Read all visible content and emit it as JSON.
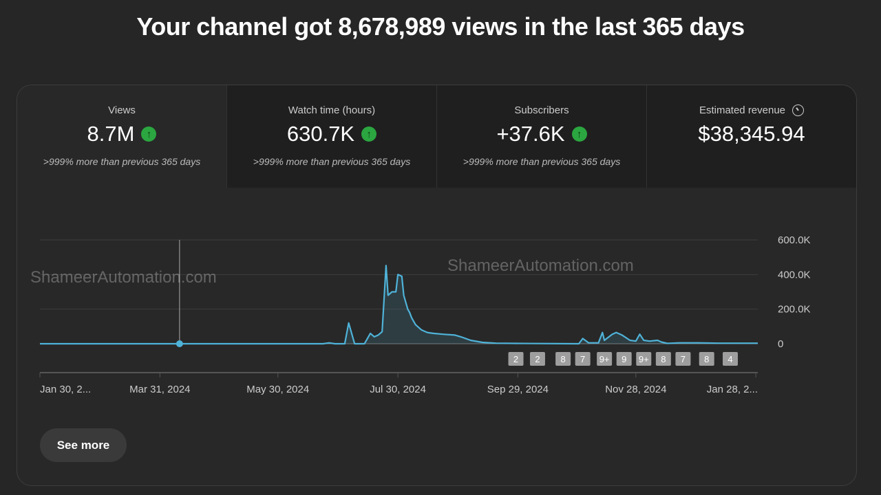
{
  "headline": "Your channel got 8,678,989 views in the last 365 days",
  "tabs": [
    {
      "label": "Views",
      "value": "8.7M",
      "trend": "up",
      "sub": ">999% more than previous 365 days"
    },
    {
      "label": "Watch time (hours)",
      "value": "630.7K",
      "trend": "up",
      "sub": ">999% more than previous 365 days"
    },
    {
      "label": "Subscribers",
      "value": "+37.6K",
      "trend": "up",
      "sub": ">999% more than previous 365 days"
    },
    {
      "label": "Estimated revenue",
      "value": "$38,345.94",
      "icon": "clock-icon"
    }
  ],
  "watermarks": [
    "ShameerAutomation.com",
    "ShameerAutomation.com"
  ],
  "see_more": "See more",
  "colors": {
    "line": "#4fb3d9",
    "up": "#2ba640"
  },
  "chart_data": {
    "type": "line",
    "series_name": "Views",
    "x_unit": "days since Jan 30, 2024",
    "xlim": [
      0,
      365
    ],
    "ylim": [
      0,
      600
    ],
    "y_unit": "K",
    "yticks": [
      {
        "v": 0,
        "label": "0"
      },
      {
        "v": 200,
        "label": "200.0K"
      },
      {
        "v": 400,
        "label": "400.0K"
      },
      {
        "v": 600,
        "label": "600.0K"
      }
    ],
    "xticks": [
      {
        "d": 0,
        "label": "Jan 30, 2..."
      },
      {
        "d": 61,
        "label": "Mar 31, 2024"
      },
      {
        "d": 121,
        "label": "May 30, 2024"
      },
      {
        "d": 182,
        "label": "Jul 30, 2024"
      },
      {
        "d": 243,
        "label": "Sep 29, 2024"
      },
      {
        "d": 303,
        "label": "Nov 28, 2024"
      },
      {
        "d": 364,
        "label": "Jan 28, 2..."
      }
    ],
    "points": [
      [
        0,
        0
      ],
      [
        144,
        0
      ],
      [
        147,
        5
      ],
      [
        150,
        0
      ],
      [
        155,
        0
      ],
      [
        157,
        120
      ],
      [
        160,
        0
      ],
      [
        165,
        0
      ],
      [
        168,
        60
      ],
      [
        170,
        40
      ],
      [
        172,
        50
      ],
      [
        174,
        70
      ],
      [
        176,
        452
      ],
      [
        177,
        280
      ],
      [
        179,
        300
      ],
      [
        181,
        300
      ],
      [
        182,
        400
      ],
      [
        184,
        390
      ],
      [
        185,
        280
      ],
      [
        187,
        200
      ],
      [
        188,
        180
      ],
      [
        189,
        150
      ],
      [
        191,
        110
      ],
      [
        194,
        80
      ],
      [
        197,
        65
      ],
      [
        200,
        60
      ],
      [
        205,
        55
      ],
      [
        211,
        50
      ],
      [
        214,
        40
      ],
      [
        219,
        20
      ],
      [
        225,
        8
      ],
      [
        232,
        3
      ],
      [
        242,
        2
      ],
      [
        274,
        0
      ],
      [
        276,
        30
      ],
      [
        279,
        5
      ],
      [
        284,
        5
      ],
      [
        286,
        65
      ],
      [
        287,
        20
      ],
      [
        291,
        55
      ],
      [
        293,
        65
      ],
      [
        296,
        50
      ],
      [
        300,
        20
      ],
      [
        303,
        15
      ],
      [
        305,
        55
      ],
      [
        307,
        20
      ],
      [
        310,
        15
      ],
      [
        314,
        20
      ],
      [
        316,
        10
      ],
      [
        319,
        2
      ],
      [
        325,
        5
      ],
      [
        335,
        5
      ],
      [
        345,
        3
      ],
      [
        365,
        3
      ]
    ],
    "cursor_day": 71,
    "annotations": [
      {
        "d": 242,
        "label": "2"
      },
      {
        "d": 253,
        "label": "2"
      },
      {
        "d": 266,
        "label": "8"
      },
      {
        "d": 276,
        "label": "7"
      },
      {
        "d": 287,
        "label": "9+"
      },
      {
        "d": 297,
        "label": "9"
      },
      {
        "d": 307,
        "label": "9+"
      },
      {
        "d": 317,
        "label": "8"
      },
      {
        "d": 327,
        "label": "7"
      },
      {
        "d": 339,
        "label": "8"
      },
      {
        "d": 351,
        "label": "4"
      }
    ]
  }
}
